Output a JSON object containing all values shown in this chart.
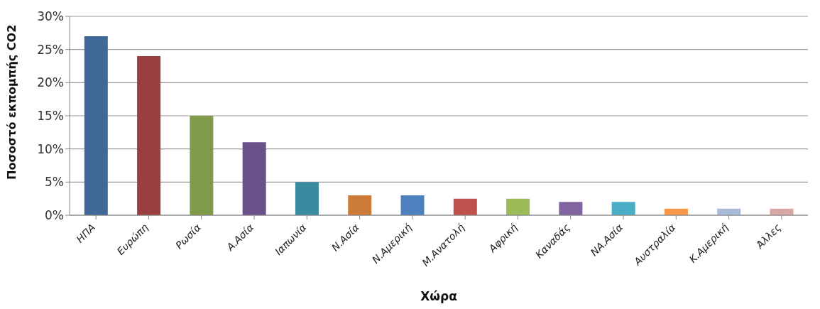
{
  "chart_data": {
    "type": "bar",
    "xlabel": "Χώρα",
    "ylabel": "Ποσοστό εκπομπής CO2",
    "categories": [
      "ΗΠΑ",
      "Ευρώπη",
      "Ρωσία",
      "Α.Ασία",
      "Ιαπωνία",
      "Ν.Ασία",
      "Ν.Αμερική",
      "Μ.Ανατολή",
      "Αφρική",
      "Καναδάς",
      "ΝΑ.Ασία",
      "Αυστραλία",
      "Κ.Αμερική",
      "Άλλες"
    ],
    "values": [
      27,
      24,
      15,
      11,
      5,
      3,
      3,
      2.5,
      2.5,
      2,
      2,
      1,
      1,
      1
    ],
    "colors": [
      "#3f6898",
      "#9a3e3f",
      "#7f9a48",
      "#6a5088",
      "#3b8ba0",
      "#cc7b38",
      "#4e80bd",
      "#c0504d",
      "#9bbb59",
      "#8064a2",
      "#4bacc6",
      "#f79646",
      "#a9bad9",
      "#d9a5a5"
    ],
    "ylim": [
      0,
      30
    ],
    "yticks": [
      {
        "value": 0,
        "label": "0%"
      },
      {
        "value": 5,
        "label": "5%"
      },
      {
        "value": 10,
        "label": "10%"
      },
      {
        "value": 15,
        "label": "15%"
      },
      {
        "value": 20,
        "label": "20%"
      },
      {
        "value": 25,
        "label": "25%"
      },
      {
        "value": 30,
        "label": "30%"
      }
    ],
    "grid": "y",
    "legend": false
  }
}
